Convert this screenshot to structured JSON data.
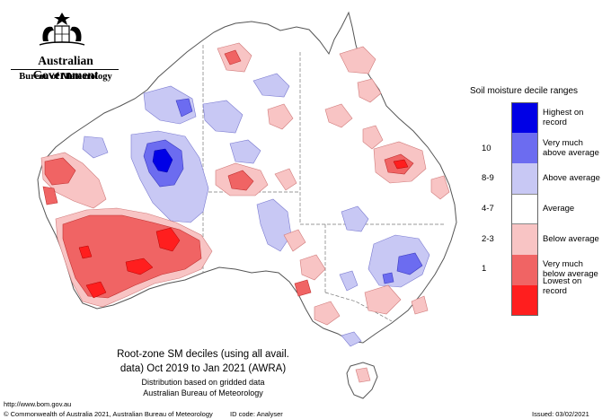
{
  "header": {
    "government": "Australian Government",
    "bureau": "Bureau of Meteorology"
  },
  "legend": {
    "title": "Soil moisture decile ranges",
    "items": [
      {
        "label": "Highest on record",
        "range": "",
        "color": "#0000e6"
      },
      {
        "label": "Very much above average",
        "range": "10",
        "color": "#6c6cf0"
      },
      {
        "label": "Above average",
        "range": "8-9",
        "color": "#c8c8f4"
      },
      {
        "label": "Average",
        "range": "4-7",
        "color": "#ffffff"
      },
      {
        "label": "Below average",
        "range": "2-3",
        "color": "#f8c4c4"
      },
      {
        "label": "Very much below average",
        "range": "1",
        "color": "#f06464"
      },
      {
        "label": "Lowest on record",
        "range": "",
        "color": "#ff1e1e"
      }
    ]
  },
  "caption": {
    "line1": "Root-zone SM deciles (using all avail.",
    "line2": "data) Oct 2019 to Jan 2021 (AWRA)",
    "line3": "Distribution based on gridded data",
    "line4": "Australian Bureau of Meteorology"
  },
  "footer": {
    "url": "http://www.bom.gov.au",
    "copyright": "© Commonwealth of Australia 2021, Australian Bureau of Meteorology",
    "id_code": "ID code: Analyser",
    "issued": "Issued: 03/02/2021"
  }
}
